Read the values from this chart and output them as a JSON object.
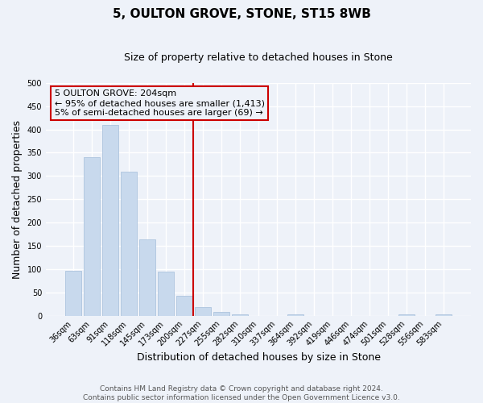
{
  "title": "5, OULTON GROVE, STONE, ST15 8WB",
  "subtitle": "Size of property relative to detached houses in Stone",
  "xlabel": "Distribution of detached houses by size in Stone",
  "ylabel": "Number of detached properties",
  "bar_labels": [
    "36sqm",
    "63sqm",
    "91sqm",
    "118sqm",
    "145sqm",
    "173sqm",
    "200sqm",
    "227sqm",
    "255sqm",
    "282sqm",
    "310sqm",
    "337sqm",
    "364sqm",
    "392sqm",
    "419sqm",
    "446sqm",
    "474sqm",
    "501sqm",
    "528sqm",
    "556sqm",
    "583sqm"
  ],
  "bar_values": [
    97,
    340,
    410,
    310,
    163,
    95,
    42,
    19,
    8,
    2,
    0,
    0,
    3,
    0,
    0,
    0,
    0,
    0,
    2,
    0,
    2
  ],
  "bar_color": "#c8d9ed",
  "bar_edge_color": "#adc4de",
  "vline_color": "#cc0000",
  "annotation_title": "5 OULTON GROVE: 204sqm",
  "annotation_line1": "← 95% of detached houses are smaller (1,413)",
  "annotation_line2": "5% of semi-detached houses are larger (69) →",
  "annotation_box_color": "#cc0000",
  "ylim": [
    0,
    500
  ],
  "yticks": [
    0,
    50,
    100,
    150,
    200,
    250,
    300,
    350,
    400,
    450,
    500
  ],
  "footer1": "Contains HM Land Registry data © Crown copyright and database right 2024.",
  "footer2": "Contains public sector information licensed under the Open Government Licence v3.0.",
  "background_color": "#eef2f9",
  "grid_color": "#ffffff",
  "title_fontsize": 11,
  "subtitle_fontsize": 9,
  "axis_label_fontsize": 9,
  "tick_fontsize": 7,
  "annotation_fontsize": 8,
  "footer_fontsize": 6.5
}
